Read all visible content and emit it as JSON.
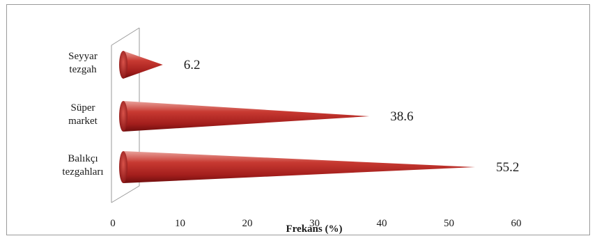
{
  "chart_data": {
    "type": "bar",
    "orientation": "horizontal",
    "style": "3d-cone",
    "categories": [
      [
        "Seyyar",
        "tezgah"
      ],
      [
        "Süper",
        "market"
      ],
      [
        "Balıkçı",
        "tezgahları"
      ]
    ],
    "values": [
      6.2,
      38.6,
      55.2
    ],
    "data_labels": [
      "6.2",
      "38.6",
      "55.2"
    ],
    "title": "",
    "xlabel": "Frekans (%)",
    "ylabel": "",
    "xlim": [
      0,
      60
    ],
    "xticks": [
      "0",
      "10",
      "20",
      "30",
      "40",
      "50",
      "60"
    ],
    "grid": false,
    "legend": "none",
    "colors": {
      "cone": "#c0392b",
      "cone_dark": "#7a1010",
      "cone_light": "#f3b6b0"
    }
  }
}
